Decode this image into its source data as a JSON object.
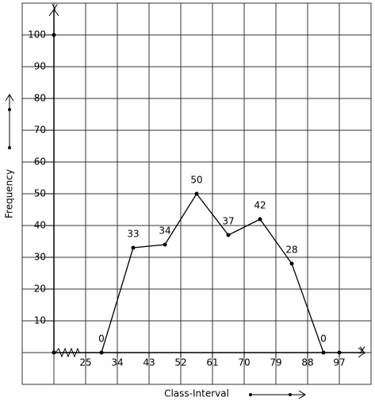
{
  "chart_data": {
    "type": "line",
    "x_label": "Class-Interval",
    "y_label": "Frequency",
    "x_axis_name": "X",
    "y_axis_name": "Y",
    "x": [
      29.5,
      38.5,
      47.5,
      56.5,
      65.5,
      74.5,
      83.5,
      92.5
    ],
    "values": [
      0,
      33,
      34,
      50,
      37,
      42,
      28,
      0
    ],
    "color": "#000000",
    "xlim": [
      16,
      106
    ],
    "xticks": [
      25,
      34,
      43,
      52,
      61,
      70,
      79,
      88,
      97
    ],
    "ylim": [
      -10,
      110
    ],
    "yticks": [
      10,
      20,
      30,
      40,
      50,
      60,
      70,
      80,
      90,
      100
    ],
    "grid": true
  }
}
